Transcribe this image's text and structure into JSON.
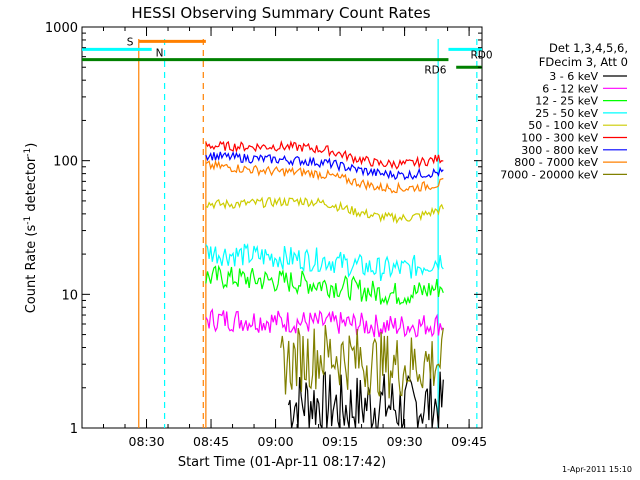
{
  "chart_data": {
    "type": "line",
    "title": "HESSI Observing Summary Count Rates",
    "xlabel": "Start Time (01-Apr-11 08:17:42)",
    "ylabel": "Count Rate (s",
    "ylabel_sup": "-1",
    "ylabel_mid": " detector",
    "ylabel_end": ")",
    "yscale": "log",
    "ylim": [
      1,
      1000
    ],
    "xlim_minutes": [
      8.25,
      9.8
    ],
    "x_ticks": [
      "08:30",
      "08:45",
      "09:00",
      "09:15",
      "09:30",
      "09:45"
    ],
    "y_ticks": [
      "1",
      "10",
      "100",
      "1000"
    ],
    "legend_header": [
      "Det 1,3,4,5,6,",
      "FDecim 3, Att 0"
    ],
    "legend_placement": "right",
    "timestamp": "1-Apr-2011 15:10",
    "series": [
      {
        "name": "3 - 6 keV",
        "color": "#000000",
        "t": [
          9.05,
          9.13,
          9.2,
          9.28,
          9.35,
          9.42,
          9.5,
          9.57,
          9.65
        ],
        "values": [
          1.5,
          1.6,
          1.5,
          1.4,
          1.5,
          1.5,
          1.4,
          1.5,
          1.5
        ]
      },
      {
        "name": "6 - 12 keV",
        "color": "#ff00ff",
        "t": [
          8.73,
          8.8,
          8.9,
          9.0,
          9.1,
          9.2,
          9.3,
          9.4,
          9.5,
          9.57,
          9.65
        ],
        "values": [
          6.5,
          6.5,
          6.4,
          6.3,
          6.2,
          6.1,
          6.0,
          5.8,
          5.8,
          5.9,
          6.0
        ]
      },
      {
        "name": "12 - 25 keV",
        "color": "#00ff00",
        "t": [
          8.73,
          8.8,
          8.9,
          9.0,
          9.1,
          9.2,
          9.3,
          9.4,
          9.5,
          9.57,
          9.65
        ],
        "values": [
          13.5,
          13.3,
          13.0,
          12.6,
          12.3,
          11.8,
          11.0,
          10.3,
          10.0,
          10.5,
          11.5
        ]
      },
      {
        "name": "25 - 50 keV",
        "color": "#00ffff",
        "t": [
          8.73,
          8.8,
          8.9,
          9.0,
          9.1,
          9.2,
          9.3,
          9.4,
          9.5,
          9.57,
          9.65
        ],
        "values": [
          21,
          20,
          19.5,
          19,
          18.5,
          18,
          16.5,
          15.5,
          15.5,
          16.5,
          18.5
        ]
      },
      {
        "name": "50 - 100 keV",
        "color": "#cccc00",
        "t": [
          8.73,
          8.8,
          8.9,
          9.0,
          9.1,
          9.2,
          9.3,
          9.4,
          9.5,
          9.57,
          9.65
        ],
        "values": [
          48,
          47,
          48,
          49,
          50,
          48,
          42,
          38,
          37,
          39,
          44
        ]
      },
      {
        "name": "100 - 300 keV",
        "color": "#ff0000",
        "t": [
          8.73,
          8.8,
          8.9,
          9.0,
          9.1,
          9.2,
          9.3,
          9.4,
          9.5,
          9.57,
          9.65
        ],
        "values": [
          130,
          128,
          127,
          128,
          126,
          120,
          105,
          95,
          94,
          98,
          105
        ]
      },
      {
        "name": "300 - 800 keV",
        "color": "#0000ff",
        "t": [
          8.73,
          8.8,
          8.9,
          9.0,
          9.1,
          9.2,
          9.3,
          9.4,
          9.5,
          9.57,
          9.65
        ],
        "values": [
          110,
          107,
          104,
          102,
          100,
          96,
          87,
          80,
          78,
          80,
          82
        ]
      },
      {
        "name": "800 - 7000 keV",
        "color": "#ff8000",
        "t": [
          8.73,
          8.8,
          8.9,
          9.0,
          9.1,
          9.2,
          9.3,
          9.4,
          9.5,
          9.57,
          9.65
        ],
        "values": [
          92,
          90,
          86,
          83,
          82,
          78,
          70,
          63,
          62,
          64,
          68
        ]
      },
      {
        "name": "7000 - 20000 keV",
        "color": "#808000",
        "t": [
          9.02,
          9.1,
          9.2,
          9.3,
          9.4,
          9.5,
          9.57,
          9.65
        ],
        "values": [
          3.0,
          3.3,
          3.6,
          3.3,
          3.0,
          2.9,
          3.1,
          3.2
        ]
      }
    ],
    "annotations": [
      {
        "label": "S",
        "color": "#ff8000",
        "kind": "bar",
        "t_start": 8.47,
        "t_end": 8.73,
        "level": 780
      },
      {
        "label": "N",
        "color": "#00ffff",
        "kind": "bar",
        "t_start": 8.25,
        "t_end": 8.52,
        "level": 680
      },
      {
        "label": "RD0",
        "color": "#00ffff",
        "kind": "bar",
        "t_start": 9.67,
        "t_end": 9.8,
        "level": 680
      },
      {
        "label": "RD6",
        "color": "#008000",
        "kind": "bar",
        "t_start": 8.25,
        "t_end": 9.67,
        "level": 570
      },
      {
        "label": "",
        "color": "#008000",
        "kind": "bar",
        "t_start": 9.7,
        "t_end": 9.8,
        "level": 500
      }
    ],
    "markers": [
      {
        "t": 8.47,
        "color": "#ff8000",
        "style": "solid"
      },
      {
        "t": 8.72,
        "color": "#ff8000",
        "style": "dashed"
      },
      {
        "t": 8.57,
        "color": "#00ffff",
        "style": "dashed"
      },
      {
        "t": 9.63,
        "color": "#00ffff",
        "style": "solid"
      },
      {
        "t": 9.78,
        "color": "#00ffff",
        "style": "dashed"
      },
      {
        "t": 8.73,
        "color": "#ff8000",
        "style": "solid_short"
      }
    ]
  }
}
